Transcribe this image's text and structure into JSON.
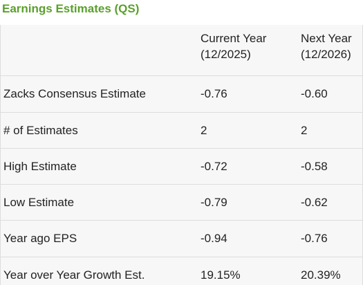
{
  "title": "Earnings Estimates (QS)",
  "columns": [
    {
      "line1": "Current Year",
      "line2": "(12/2025)"
    },
    {
      "line1": "Next Year",
      "line2": "(12/2026)"
    }
  ],
  "rows": [
    {
      "label": "Zacks Consensus Estimate",
      "current": "-0.76",
      "next": "-0.60"
    },
    {
      "label": "# of Estimates",
      "current": "2",
      "next": "2"
    },
    {
      "label": "High Estimate",
      "current": "-0.72",
      "next": "-0.58"
    },
    {
      "label": "Low Estimate",
      "current": "-0.79",
      "next": "-0.62"
    },
    {
      "label": "Year ago EPS",
      "current": "-0.94",
      "next": "-0.76"
    },
    {
      "label": "Year over Year Growth Est.",
      "current": "19.15%",
      "next": "20.39%"
    }
  ],
  "colors": {
    "title": "#5aa02c",
    "background": "#f7f7f7",
    "border": "#dddddd",
    "text": "#222222"
  }
}
